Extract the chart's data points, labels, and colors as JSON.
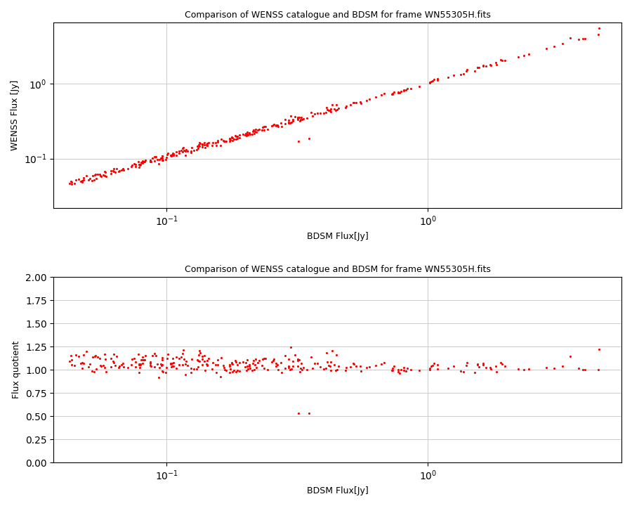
{
  "title": "Comparison of WENSS catalogue and BDSM for frame WN55305H.fits",
  "xlabel": "BDSM Flux[Jy]",
  "ylabel_top": "WENSS Flux [Jy]",
  "ylabel_bottom": "Flux quotient",
  "dot_color": "#ff0000",
  "dot_size": 5,
  "background_color": "#ffffff",
  "grid_color": "#cccccc",
  "xlim_log": [
    0.037,
    5.5
  ],
  "ylim_log": [
    0.022,
    6.5
  ],
  "ylim_linear": [
    0.0,
    2.0
  ],
  "yticks_linear": [
    0.0,
    0.25,
    0.5,
    0.75,
    1.0,
    1.25,
    1.5,
    1.75,
    2.0
  ],
  "title_fontsize": 9,
  "label_fontsize": 9
}
